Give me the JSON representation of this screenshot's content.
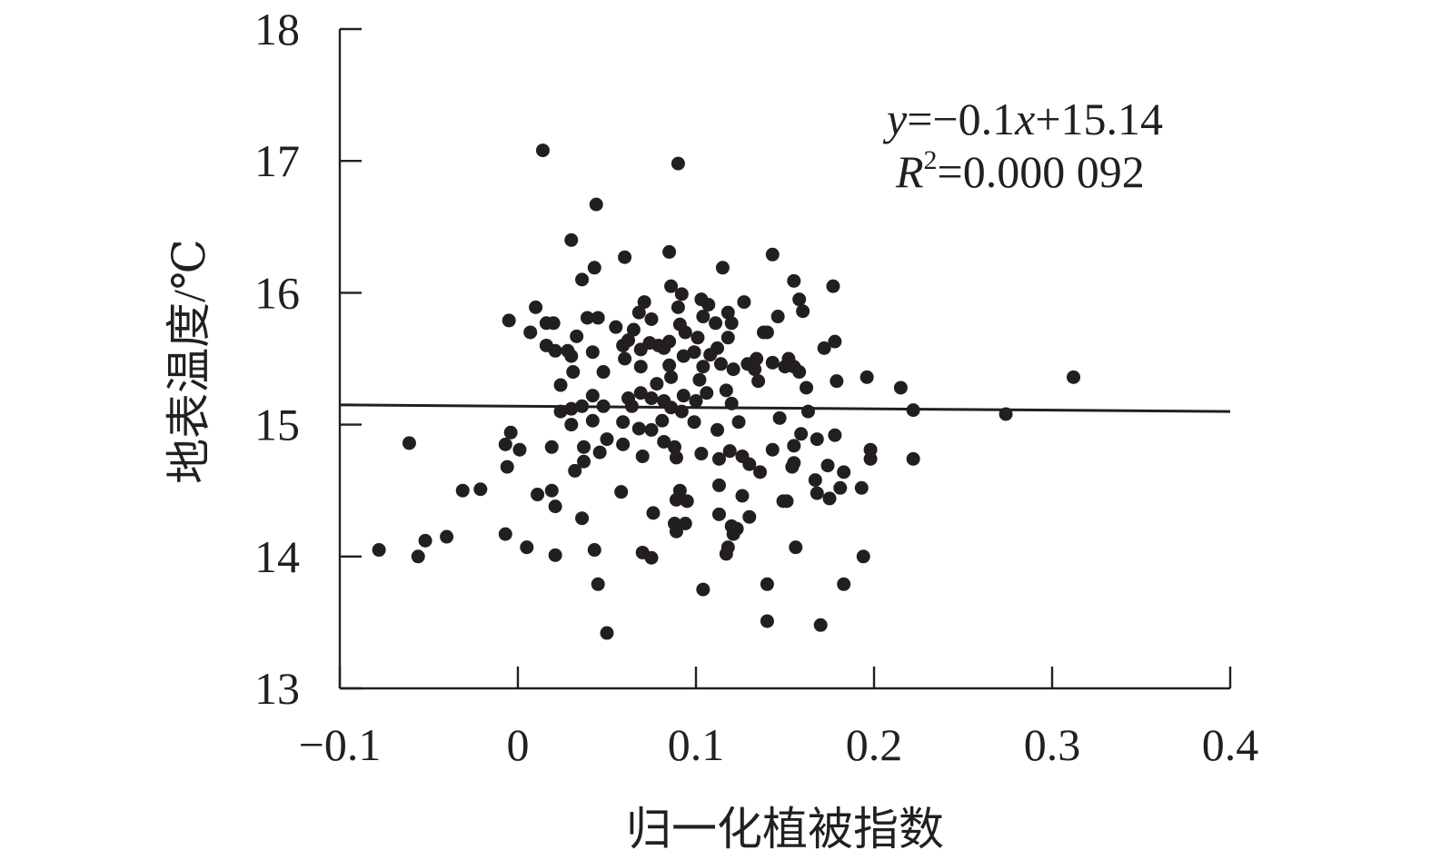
{
  "chart_data": {
    "type": "scatter",
    "title": "",
    "xlabel": "归一化植被指数",
    "ylabel": "地表温度/℃",
    "xlim": [
      -0.1,
      0.4
    ],
    "ylim": [
      13,
      18
    ],
    "xticks": [
      -0.1,
      0,
      0.1,
      0.2,
      0.3,
      0.4
    ],
    "yticks": [
      13,
      14,
      15,
      16,
      17,
      18
    ],
    "xtick_labels": [
      "−0.1",
      "0",
      "0.1",
      "0.2",
      "0.3",
      "0.4"
    ],
    "ytick_labels": [
      "13",
      "14",
      "15",
      "16",
      "17",
      "18"
    ],
    "grid": false,
    "legend": "none",
    "annotation": {
      "equation": {
        "y_var": "y",
        "eq": "=−0.1",
        "x_var": "x",
        "tail": "+15.14"
      },
      "r2": {
        "var": "R",
        "sup": "2",
        "value": "=0.000 092"
      }
    },
    "fit_line": {
      "slope": -0.1,
      "intercept": 15.14
    },
    "points": [
      [
        0.014,
        17.08
      ],
      [
        0.09,
        16.98
      ],
      [
        0.044,
        16.67
      ],
      [
        0.03,
        16.4
      ],
      [
        0.085,
        16.31
      ],
      [
        0.06,
        16.27
      ],
      [
        0.143,
        16.29
      ],
      [
        0.043,
        16.19
      ],
      [
        0.115,
        16.19
      ],
      [
        0.036,
        16.1
      ],
      [
        0.155,
        16.09
      ],
      [
        0.177,
        16.05
      ],
      [
        0.086,
        16.05
      ],
      [
        0.158,
        15.95
      ],
      [
        0.103,
        15.95
      ],
      [
        0.071,
        15.93
      ],
      [
        0.127,
        15.93
      ],
      [
        0.092,
        15.99
      ],
      [
        0.107,
        15.91
      ],
      [
        0.09,
        15.89
      ],
      [
        0.01,
        15.89
      ],
      [
        0.068,
        15.85
      ],
      [
        0.118,
        15.85
      ],
      [
        0.16,
        15.86
      ],
      [
        0.146,
        15.82
      ],
      [
        0.045,
        15.81
      ],
      [
        0.039,
        15.81
      ],
      [
        0.075,
        15.8
      ],
      [
        0.104,
        15.82
      ],
      [
        -0.005,
        15.79
      ],
      [
        0.016,
        15.77
      ],
      [
        0.02,
        15.77
      ],
      [
        0.111,
        15.77
      ],
      [
        0.12,
        15.77
      ],
      [
        0.091,
        15.76
      ],
      [
        0.055,
        15.74
      ],
      [
        0.065,
        15.72
      ],
      [
        0.094,
        15.7
      ],
      [
        0.14,
        15.7
      ],
      [
        0.138,
        15.7
      ],
      [
        0.007,
        15.7
      ],
      [
        0.033,
        15.67
      ],
      [
        0.101,
        15.66
      ],
      [
        0.085,
        15.63
      ],
      [
        0.118,
        15.66
      ],
      [
        0.062,
        15.64
      ],
      [
        0.178,
        15.63
      ],
      [
        0.016,
        15.6
      ],
      [
        0.074,
        15.62
      ],
      [
        0.059,
        15.6
      ],
      [
        0.079,
        15.6
      ],
      [
        0.082,
        15.58
      ],
      [
        0.112,
        15.58
      ],
      [
        0.021,
        15.56
      ],
      [
        0.028,
        15.56
      ],
      [
        0.069,
        15.57
      ],
      [
        0.042,
        15.55
      ],
      [
        0.099,
        15.55
      ],
      [
        0.108,
        15.53
      ],
      [
        0.093,
        15.52
      ],
      [
        0.172,
        15.58
      ],
      [
        0.134,
        15.5
      ],
      [
        0.152,
        15.5
      ],
      [
        0.03,
        15.52
      ],
      [
        0.06,
        15.5
      ],
      [
        0.143,
        15.47
      ],
      [
        0.114,
        15.46
      ],
      [
        0.129,
        15.46
      ],
      [
        0.085,
        15.45
      ],
      [
        0.069,
        15.44
      ],
      [
        0.15,
        15.44
      ],
      [
        0.155,
        15.44
      ],
      [
        0.104,
        15.44
      ],
      [
        0.121,
        15.42
      ],
      [
        0.133,
        15.42
      ],
      [
        0.031,
        15.4
      ],
      [
        0.048,
        15.4
      ],
      [
        0.158,
        15.4
      ],
      [
        0.196,
        15.36
      ],
      [
        0.086,
        15.36
      ],
      [
        0.102,
        15.34
      ],
      [
        0.312,
        15.36
      ],
      [
        0.135,
        15.33
      ],
      [
        0.179,
        15.33
      ],
      [
        0.078,
        15.31
      ],
      [
        0.024,
        15.3
      ],
      [
        0.215,
        15.28
      ],
      [
        0.162,
        15.28
      ],
      [
        0.117,
        15.26
      ],
      [
        0.106,
        15.24
      ],
      [
        0.069,
        15.24
      ],
      [
        0.093,
        15.22
      ],
      [
        0.042,
        15.22
      ],
      [
        0.062,
        15.2
      ],
      [
        0.075,
        15.2
      ],
      [
        0.082,
        15.18
      ],
      [
        0.1,
        15.18
      ],
      [
        0.12,
        15.16
      ],
      [
        0.036,
        15.14
      ],
      [
        0.048,
        15.14
      ],
      [
        0.064,
        15.14
      ],
      [
        0.086,
        15.13
      ],
      [
        0.03,
        15.12
      ],
      [
        0.024,
        15.1
      ],
      [
        0.222,
        15.11
      ],
      [
        0.163,
        15.1
      ],
      [
        0.092,
        15.1
      ],
      [
        0.147,
        15.05
      ],
      [
        0.042,
        15.03
      ],
      [
        0.059,
        15.02
      ],
      [
        0.081,
        15.03
      ],
      [
        0.099,
        15.02
      ],
      [
        0.124,
        15.02
      ],
      [
        0.274,
        15.08
      ],
      [
        0.03,
        15.0
      ],
      [
        0.112,
        14.96
      ],
      [
        0.068,
        14.97
      ],
      [
        0.075,
        14.96
      ],
      [
        -0.004,
        14.94
      ],
      [
        0.159,
        14.93
      ],
      [
        0.178,
        14.92
      ],
      [
        0.168,
        14.89
      ],
      [
        0.05,
        14.89
      ],
      [
        0.082,
        14.87
      ],
      [
        -0.061,
        14.86
      ],
      [
        0.059,
        14.85
      ],
      [
        0.019,
        14.83
      ],
      [
        0.037,
        14.83
      ],
      [
        0.088,
        14.83
      ],
      [
        0.155,
        14.84
      ],
      [
        -0.007,
        14.85
      ],
      [
        0.001,
        14.81
      ],
      [
        0.143,
        14.81
      ],
      [
        0.119,
        14.8
      ],
      [
        0.198,
        14.81
      ],
      [
        0.046,
        14.79
      ],
      [
        0.103,
        14.78
      ],
      [
        0.07,
        14.76
      ],
      [
        0.126,
        14.76
      ],
      [
        0.089,
        14.75
      ],
      [
        0.113,
        14.74
      ],
      [
        0.222,
        14.74
      ],
      [
        0.198,
        14.74
      ],
      [
        0.037,
        14.72
      ],
      [
        0.155,
        14.71
      ],
      [
        0.13,
        14.7
      ],
      [
        0.174,
        14.69
      ],
      [
        -0.006,
        14.68
      ],
      [
        0.154,
        14.68
      ],
      [
        0.032,
        14.65
      ],
      [
        0.136,
        14.64
      ],
      [
        0.183,
        14.64
      ],
      [
        0.167,
        14.58
      ],
      [
        0.113,
        14.54
      ],
      [
        0.019,
        14.5
      ],
      [
        -0.031,
        14.5
      ],
      [
        -0.021,
        14.51
      ],
      [
        0.091,
        14.5
      ],
      [
        0.181,
        14.52
      ],
      [
        0.193,
        14.52
      ],
      [
        0.058,
        14.49
      ],
      [
        0.011,
        14.47
      ],
      [
        0.168,
        14.48
      ],
      [
        0.126,
        14.46
      ],
      [
        0.175,
        14.44
      ],
      [
        0.089,
        14.43
      ],
      [
        0.095,
        14.42
      ],
      [
        0.149,
        14.42
      ],
      [
        0.151,
        14.42
      ],
      [
        0.021,
        14.38
      ],
      [
        0.076,
        14.33
      ],
      [
        0.113,
        14.32
      ],
      [
        0.13,
        14.3
      ],
      [
        0.036,
        14.29
      ],
      [
        0.094,
        14.25
      ],
      [
        0.088,
        14.25
      ],
      [
        0.12,
        14.23
      ],
      [
        0.123,
        14.21
      ],
      [
        0.089,
        14.19
      ],
      [
        0.121,
        14.17
      ],
      [
        -0.007,
        14.17
      ],
      [
        -0.04,
        14.15
      ],
      [
        -0.052,
        14.12
      ],
      [
        0.118,
        14.07
      ],
      [
        0.005,
        14.07
      ],
      [
        0.043,
        14.05
      ],
      [
        0.156,
        14.07
      ],
      [
        -0.078,
        14.05
      ],
      [
        0.117,
        14.02
      ],
      [
        0.021,
        14.01
      ],
      [
        -0.056,
        14.0
      ],
      [
        0.07,
        14.03
      ],
      [
        0.194,
        14.0
      ],
      [
        0.075,
        13.99
      ],
      [
        0.045,
        13.79
      ],
      [
        0.14,
        13.79
      ],
      [
        0.183,
        13.79
      ],
      [
        0.104,
        13.75
      ],
      [
        0.14,
        13.51
      ],
      [
        0.17,
        13.48
      ],
      [
        0.05,
        13.42
      ]
    ]
  }
}
